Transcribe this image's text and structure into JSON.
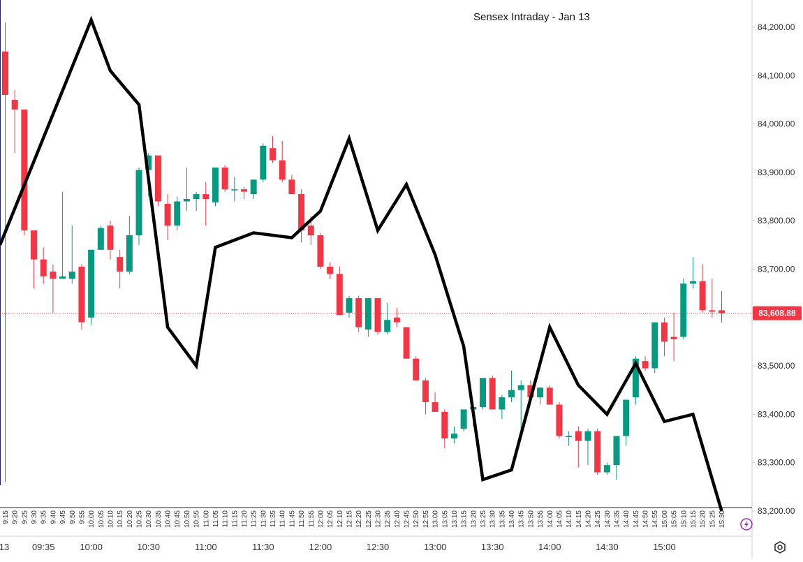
{
  "chart_data": {
    "type": "candlestick",
    "title": "Sensex Intraday - Jan 13",
    "y_ticks": [
      "84,200.00",
      "84,100.00",
      "84,000.00",
      "83,900.00",
      "83,800.00",
      "83,700.00",
      "83,500.00",
      "83,400.00",
      "83,300.00",
      "83,200.00"
    ],
    "y_tick_values": [
      84200,
      84100,
      84000,
      83900,
      83800,
      83700,
      83500,
      83400,
      83300,
      83200
    ],
    "ylim": [
      83190,
      84215
    ],
    "last_price": 83608.88,
    "last_price_label": "83,608.88",
    "x_small_ticks": [
      "9:15",
      "9:20",
      "9:25",
      "9:30",
      "9:35",
      "9:40",
      "9:45",
      "9:50",
      "9:55",
      "10:00",
      "10:05",
      "10:10",
      "10:15",
      "10:20",
      "10:25",
      "10:30",
      "10:35",
      "10:40",
      "10:45",
      "10:50",
      "10:55",
      "11:00",
      "11:05",
      "11:10",
      "11:15",
      "11:20",
      "11:25",
      "11:30",
      "11:35",
      "11:40",
      "11:45",
      "11:50",
      "11:55",
      "12:00",
      "12:05",
      "12:10",
      "12:15",
      "12:20",
      "12:25",
      "12:30",
      "12:35",
      "12:40",
      "12:45",
      "12:50",
      "12:55",
      "13:00",
      "13:05",
      "13:10",
      "13:15",
      "13:20",
      "13:25",
      "13:30",
      "13:35",
      "13:40",
      "13:45",
      "13:50",
      "13:55",
      "14:00",
      "14:05",
      "14:10",
      "14:15",
      "14:20",
      "14:25",
      "14:30",
      "14:35",
      "14:40",
      "14:45",
      "14:50",
      "14:55",
      "15:00",
      "15:05",
      "15:10",
      "15:15",
      "15:20",
      "15:25",
      "15:30"
    ],
    "x_major_ticks": [
      {
        "label": "13",
        "time": "9:15"
      },
      {
        "label": "09:35",
        "time": "9:35"
      },
      {
        "label": "10:00",
        "time": "10:00"
      },
      {
        "label": "10:30",
        "time": "10:30"
      },
      {
        "label": "11:00",
        "time": "11:00"
      },
      {
        "label": "11:30",
        "time": "11:30"
      },
      {
        "label": "12:00",
        "time": "12:00"
      },
      {
        "label": "12:30",
        "time": "12:30"
      },
      {
        "label": "13:00",
        "time": "13:00"
      },
      {
        "label": "13:30",
        "time": "13:30"
      },
      {
        "label": "14:00",
        "time": "14:00"
      },
      {
        "label": "14:30",
        "time": "14:30"
      },
      {
        "label": "15:00",
        "time": "15:00"
      }
    ],
    "candles": [
      {
        "t": "9:15",
        "o": 84150,
        "h": 84210,
        "l": 83260,
        "c": 84060
      },
      {
        "t": "9:20",
        "o": 84050,
        "h": 84070,
        "l": 83940,
        "c": 84030
      },
      {
        "t": "9:25",
        "o": 84030,
        "h": 84030,
        "l": 83770,
        "c": 83780
      },
      {
        "t": "9:30",
        "o": 83780,
        "h": 83780,
        "l": 83660,
        "c": 83720
      },
      {
        "t": "9:35",
        "o": 83720,
        "h": 83745,
        "l": 83670,
        "c": 83685
      },
      {
        "t": "9:40",
        "o": 83695,
        "h": 83710,
        "l": 83610,
        "c": 83680
      },
      {
        "t": "9:45",
        "o": 83680,
        "h": 83860,
        "l": 83680,
        "c": 83685
      },
      {
        "t": "9:50",
        "o": 83680,
        "h": 83790,
        "l": 83670,
        "c": 83695
      },
      {
        "t": "9:55",
        "o": 83705,
        "h": 83710,
        "l": 83575,
        "c": 83590
      },
      {
        "t": "10:00",
        "o": 83600,
        "h": 83740,
        "l": 83585,
        "c": 83740
      },
      {
        "t": "10:05",
        "o": 83740,
        "h": 83790,
        "l": 83740,
        "c": 83785
      },
      {
        "t": "10:10",
        "o": 83790,
        "h": 83800,
        "l": 83720,
        "c": 83740
      },
      {
        "t": "10:15",
        "o": 83725,
        "h": 83740,
        "l": 83660,
        "c": 83695
      },
      {
        "t": "10:20",
        "o": 83695,
        "h": 83810,
        "l": 83690,
        "c": 83770
      },
      {
        "t": "10:25",
        "o": 83770,
        "h": 83910,
        "l": 83750,
        "c": 83905
      },
      {
        "t": "10:30",
        "o": 83905,
        "h": 83940,
        "l": 83850,
        "c": 83935
      },
      {
        "t": "10:35",
        "o": 83935,
        "h": 83935,
        "l": 83830,
        "c": 83840
      },
      {
        "t": "10:40",
        "o": 83835,
        "h": 83855,
        "l": 83760,
        "c": 83790
      },
      {
        "t": "10:45",
        "o": 83790,
        "h": 83850,
        "l": 83780,
        "c": 83840
      },
      {
        "t": "10:50",
        "o": 83840,
        "h": 83910,
        "l": 83820,
        "c": 83845
      },
      {
        "t": "10:55",
        "o": 83845,
        "h": 83860,
        "l": 83820,
        "c": 83855
      },
      {
        "t": "11:00",
        "o": 83855,
        "h": 83880,
        "l": 83790,
        "c": 83845
      },
      {
        "t": "11:05",
        "o": 83838,
        "h": 83910,
        "l": 83830,
        "c": 83910
      },
      {
        "t": "11:10",
        "o": 83910,
        "h": 83915,
        "l": 83860,
        "c": 83865
      },
      {
        "t": "11:15",
        "o": 83865,
        "h": 83890,
        "l": 83840,
        "c": 83865
      },
      {
        "t": "11:20",
        "o": 83865,
        "h": 83870,
        "l": 83845,
        "c": 83860
      },
      {
        "t": "11:25",
        "o": 83855,
        "h": 83880,
        "l": 83845,
        "c": 83885
      },
      {
        "t": "11:30",
        "o": 83885,
        "h": 83960,
        "l": 83880,
        "c": 83955
      },
      {
        "t": "11:35",
        "o": 83950,
        "h": 83975,
        "l": 83920,
        "c": 83925
      },
      {
        "t": "11:40",
        "o": 83925,
        "h": 83965,
        "l": 83880,
        "c": 83885
      },
      {
        "t": "11:45",
        "o": 83885,
        "h": 83895,
        "l": 83855,
        "c": 83855
      },
      {
        "t": "11:50",
        "o": 83855,
        "h": 83865,
        "l": 83755,
        "c": 83780
      },
      {
        "t": "11:55",
        "o": 83790,
        "h": 83810,
        "l": 83750,
        "c": 83770
      },
      {
        "t": "12:00",
        "o": 83770,
        "h": 83775,
        "l": 83700,
        "c": 83705
      },
      {
        "t": "12:05",
        "o": 83705,
        "h": 83715,
        "l": 83680,
        "c": 83690
      },
      {
        "t": "12:10",
        "o": 83690,
        "h": 83705,
        "l": 83605,
        "c": 83605
      },
      {
        "t": "12:15",
        "o": 83610,
        "h": 83645,
        "l": 83600,
        "c": 83640
      },
      {
        "t": "12:20",
        "o": 83640,
        "h": 83645,
        "l": 83570,
        "c": 83580
      },
      {
        "t": "12:25",
        "o": 83575,
        "h": 83640,
        "l": 83560,
        "c": 83640
      },
      {
        "t": "12:30",
        "o": 83640,
        "h": 83640,
        "l": 83565,
        "c": 83570
      },
      {
        "t": "12:35",
        "o": 83570,
        "h": 83630,
        "l": 83565,
        "c": 83595
      },
      {
        "t": "12:40",
        "o": 83600,
        "h": 83620,
        "l": 83580,
        "c": 83590
      },
      {
        "t": "12:45",
        "o": 83580,
        "h": 83580,
        "l": 83515,
        "c": 83515
      },
      {
        "t": "12:50",
        "o": 83515,
        "h": 83520,
        "l": 83470,
        "c": 83470
      },
      {
        "t": "12:55",
        "o": 83470,
        "h": 83475,
        "l": 83400,
        "c": 83425
      },
      {
        "t": "13:00",
        "o": 83425,
        "h": 83445,
        "l": 83405,
        "c": 83405
      },
      {
        "t": "13:05",
        "o": 83405,
        "h": 83410,
        "l": 83330,
        "c": 83350
      },
      {
        "t": "13:10",
        "o": 83350,
        "h": 83375,
        "l": 83340,
        "c": 83360
      },
      {
        "t": "13:15",
        "o": 83370,
        "h": 83410,
        "l": 83365,
        "c": 83410
      },
      {
        "t": "13:20",
        "o": 83410,
        "h": 83420,
        "l": 83375,
        "c": 83415
      },
      {
        "t": "13:25",
        "o": 83415,
        "h": 83475,
        "l": 83410,
        "c": 83475
      },
      {
        "t": "13:30",
        "o": 83475,
        "h": 83480,
        "l": 83410,
        "c": 83410
      },
      {
        "t": "13:35",
        "o": 83410,
        "h": 83440,
        "l": 83390,
        "c": 83435
      },
      {
        "t": "13:40",
        "o": 83435,
        "h": 83490,
        "l": 83425,
        "c": 83450
      },
      {
        "t": "13:45",
        "o": 83450,
        "h": 83470,
        "l": 83360,
        "c": 83460
      },
      {
        "t": "13:50",
        "o": 83460,
        "h": 83470,
        "l": 83425,
        "c": 83435
      },
      {
        "t": "13:55",
        "o": 83435,
        "h": 83455,
        "l": 83420,
        "c": 83455
      },
      {
        "t": "14:00",
        "o": 83455,
        "h": 83460,
        "l": 83420,
        "c": 83420
      },
      {
        "t": "14:05",
        "o": 83420,
        "h": 83425,
        "l": 83350,
        "c": 83355
      },
      {
        "t": "14:10",
        "o": 83355,
        "h": 83365,
        "l": 83335,
        "c": 83355
      },
      {
        "t": "14:15",
        "o": 83365,
        "h": 83375,
        "l": 83290,
        "c": 83345
      },
      {
        "t": "14:20",
        "o": 83345,
        "h": 83370,
        "l": 83295,
        "c": 83365
      },
      {
        "t": "14:25",
        "o": 83365,
        "h": 83370,
        "l": 83275,
        "c": 83280
      },
      {
        "t": "14:30",
        "o": 83280,
        "h": 83300,
        "l": 83275,
        "c": 83295
      },
      {
        "t": "14:35",
        "o": 83295,
        "h": 83355,
        "l": 83265,
        "c": 83355
      },
      {
        "t": "14:40",
        "o": 83355,
        "h": 83430,
        "l": 83335,
        "c": 83430
      },
      {
        "t": "14:45",
        "o": 83435,
        "h": 83520,
        "l": 83420,
        "c": 83515
      },
      {
        "t": "14:50",
        "o": 83510,
        "h": 83520,
        "l": 83490,
        "c": 83495
      },
      {
        "t": "14:55",
        "o": 83495,
        "h": 83590,
        "l": 83485,
        "c": 83590
      },
      {
        "t": "15:00",
        "o": 83590,
        "h": 83600,
        "l": 83520,
        "c": 83550
      },
      {
        "t": "15:05",
        "o": 83560,
        "h": 83610,
        "l": 83510,
        "c": 83555
      },
      {
        "t": "15:10",
        "o": 83560,
        "h": 83680,
        "l": 83555,
        "c": 83670
      },
      {
        "t": "15:15",
        "o": 83670,
        "h": 83725,
        "l": 83660,
        "c": 83675
      },
      {
        "t": "15:20",
        "o": 83675,
        "h": 83710,
        "l": 83610,
        "c": 83615
      },
      {
        "t": "15:25",
        "o": 83615,
        "h": 83680,
        "l": 83600,
        "c": 83612
      },
      {
        "t": "15:30",
        "o": 83615,
        "h": 83655,
        "l": 83590,
        "c": 83608.88
      }
    ],
    "overlay_line": {
      "color": "#000000",
      "points": [
        {
          "t": "9:15",
          "y": 83750
        },
        {
          "t": "10:00",
          "y": 84215
        },
        {
          "t": "10:10",
          "y": 84110
        },
        {
          "t": "10:25",
          "y": 84040
        },
        {
          "t": "10:40",
          "y": 83580
        },
        {
          "t": "10:55",
          "y": 83500
        },
        {
          "t": "11:05",
          "y": 83745
        },
        {
          "t": "11:25",
          "y": 83775
        },
        {
          "t": "11:45",
          "y": 83765
        },
        {
          "t": "12:00",
          "y": 83820
        },
        {
          "t": "12:15",
          "y": 83970
        },
        {
          "t": "12:30",
          "y": 83780
        },
        {
          "t": "12:45",
          "y": 83875
        },
        {
          "t": "13:00",
          "y": 83730
        },
        {
          "t": "13:15",
          "y": 83540
        },
        {
          "t": "13:25",
          "y": 83265
        },
        {
          "t": "13:40",
          "y": 83285
        },
        {
          "t": "14:00",
          "y": 83580
        },
        {
          "t": "14:15",
          "y": 83460
        },
        {
          "t": "14:30",
          "y": 83400
        },
        {
          "t": "14:45",
          "y": 83505
        },
        {
          "t": "15:00",
          "y": 83385
        },
        {
          "t": "15:15",
          "y": 83400
        },
        {
          "t": "15:30",
          "y": 83200
        }
      ]
    },
    "colors": {
      "up": "#089981",
      "down": "#f23645",
      "price_line": "#f23645",
      "axis": "#cfcfcf",
      "text": "#333333",
      "purple": "#9c27b0"
    },
    "grid": false,
    "legend": "none"
  },
  "icons": {
    "settings": "settings-gear-icon",
    "lightning": "lightning-icon"
  }
}
